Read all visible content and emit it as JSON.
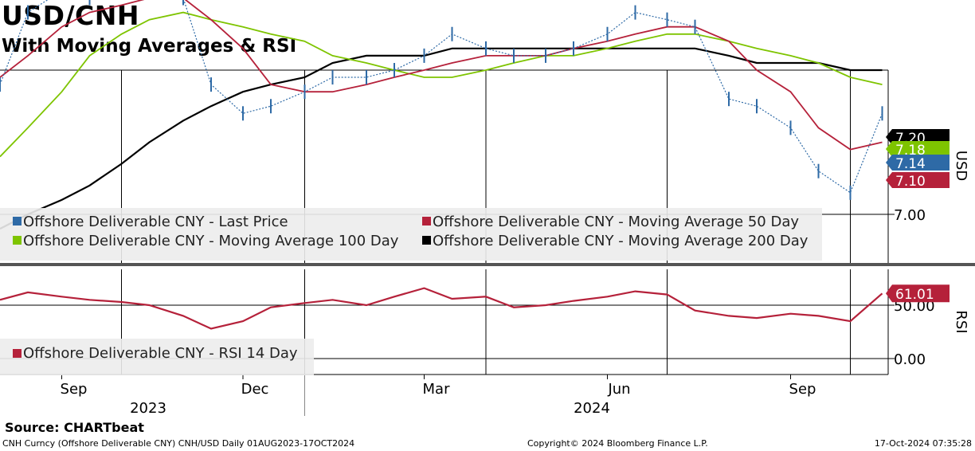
{
  "header": {
    "title": "USD/CNH",
    "subtitle": "With Moving Averages & RSI"
  },
  "footer": {
    "source": "Source: CHARTbeat",
    "left": "CNH Curncy (Offshore Deliverable CNY) CNH/USD  Daily 01AUG2023-17OCT2024",
    "center": "Copyright© 2024 Bloomberg Finance L.P.",
    "right": "17-Oct-2024 07:35:28"
  },
  "colors": {
    "price": "#2e6aa6",
    "ma50": "#b5213a",
    "ma100": "#7ec400",
    "ma200": "#000000",
    "rsi": "#b5213a",
    "legend_bg": "#ececec"
  },
  "chart_data": [
    {
      "type": "line",
      "panel": "price",
      "axis_label": "USD",
      "ylim": [
        6.9,
        7.4
      ],
      "y_ticks": [
        "7.00"
      ],
      "x_months": [
        "Sep",
        "Dec",
        "Mar",
        "Jun",
        "Sep"
      ],
      "x_years": [
        "2023",
        "2024"
      ],
      "legend": [
        "Offshore Deliverable CNY - Last Price",
        "Offshore Deliverable CNY - Moving Average 50 Day",
        "Offshore Deliverable CNY - Moving Average 100 Day",
        "Offshore Deliverable CNY - Moving Average 200 Day"
      ],
      "last_value_labels": [
        "7.20",
        "7.18",
        "7.14",
        "7.10"
      ],
      "x": [
        "2023-08-01",
        "2023-08-15",
        "2023-09-01",
        "2023-09-15",
        "2023-10-01",
        "2023-10-15",
        "2023-11-01",
        "2023-11-15",
        "2023-12-01",
        "2023-12-15",
        "2024-01-01",
        "2024-01-15",
        "2024-02-01",
        "2024-02-15",
        "2024-03-01",
        "2024-03-15",
        "2024-04-01",
        "2024-04-15",
        "2024-05-01",
        "2024-05-15",
        "2024-06-01",
        "2024-06-15",
        "2024-07-01",
        "2024-07-15",
        "2024-08-01",
        "2024-08-15",
        "2024-09-01",
        "2024-09-15",
        "2024-10-01",
        "2024-10-17"
      ],
      "series": [
        {
          "name": "Offshore Deliverable CNY - Last Price",
          "values": [
            7.18,
            7.28,
            7.31,
            7.3,
            7.31,
            7.31,
            7.3,
            7.18,
            7.14,
            7.15,
            7.17,
            7.19,
            7.19,
            7.2,
            7.22,
            7.25,
            7.23,
            7.22,
            7.22,
            7.23,
            7.25,
            7.28,
            7.27,
            7.26,
            7.16,
            7.15,
            7.12,
            7.06,
            7.03,
            7.14
          ]
        },
        {
          "name": "Offshore Deliverable CNY - Moving Average 50 Day",
          "values": [
            7.19,
            7.22,
            7.26,
            7.28,
            7.29,
            7.3,
            7.3,
            7.27,
            7.23,
            7.18,
            7.17,
            7.17,
            7.18,
            7.19,
            7.2,
            7.21,
            7.22,
            7.22,
            7.22,
            7.23,
            7.24,
            7.25,
            7.26,
            7.26,
            7.24,
            7.2,
            7.17,
            7.12,
            7.09,
            7.1
          ]
        },
        {
          "name": "Offshore Deliverable CNY - Moving Average 100 Day",
          "values": [
            7.08,
            7.12,
            7.17,
            7.22,
            7.25,
            7.27,
            7.28,
            7.27,
            7.26,
            7.25,
            7.24,
            7.22,
            7.21,
            7.2,
            7.19,
            7.19,
            7.2,
            7.21,
            7.22,
            7.22,
            7.23,
            7.24,
            7.25,
            7.25,
            7.24,
            7.23,
            7.22,
            7.21,
            7.19,
            7.18
          ]
        },
        {
          "name": "Offshore Deliverable CNY - Moving Average 200 Day",
          "values": [
            6.98,
            7.0,
            7.02,
            7.04,
            7.07,
            7.1,
            7.13,
            7.15,
            7.17,
            7.18,
            7.19,
            7.21,
            7.22,
            7.22,
            7.22,
            7.23,
            7.23,
            7.23,
            7.23,
            7.23,
            7.23,
            7.23,
            7.23,
            7.23,
            7.22,
            7.21,
            7.21,
            7.21,
            7.2,
            7.2
          ]
        }
      ]
    },
    {
      "type": "line",
      "panel": "rsi",
      "axis_label": "RSI",
      "ylim": [
        -10,
        70
      ],
      "y_ticks": [
        "0.00",
        "50.00"
      ],
      "legend": [
        "Offshore Deliverable CNY - RSI 14 Day"
      ],
      "last_value_label": "61.01",
      "x": [
        "2023-08-01",
        "2023-08-15",
        "2023-09-01",
        "2023-09-15",
        "2023-10-01",
        "2023-10-15",
        "2023-11-01",
        "2023-11-15",
        "2023-12-01",
        "2023-12-15",
        "2024-01-01",
        "2024-01-15",
        "2024-02-01",
        "2024-02-15",
        "2024-03-01",
        "2024-03-15",
        "2024-04-01",
        "2024-04-15",
        "2024-05-01",
        "2024-05-15",
        "2024-06-01",
        "2024-06-15",
        "2024-07-01",
        "2024-07-15",
        "2024-08-01",
        "2024-08-15",
        "2024-09-01",
        "2024-09-15",
        "2024-10-01",
        "2024-10-17"
      ],
      "series": [
        {
          "name": "Offshore Deliverable CNY - RSI 14 Day",
          "values": [
            55,
            62,
            58,
            55,
            53,
            50,
            40,
            28,
            35,
            48,
            52,
            55,
            50,
            58,
            66,
            56,
            58,
            48,
            50,
            54,
            58,
            63,
            60,
            45,
            40,
            38,
            42,
            40,
            35,
            61
          ]
        }
      ]
    }
  ]
}
